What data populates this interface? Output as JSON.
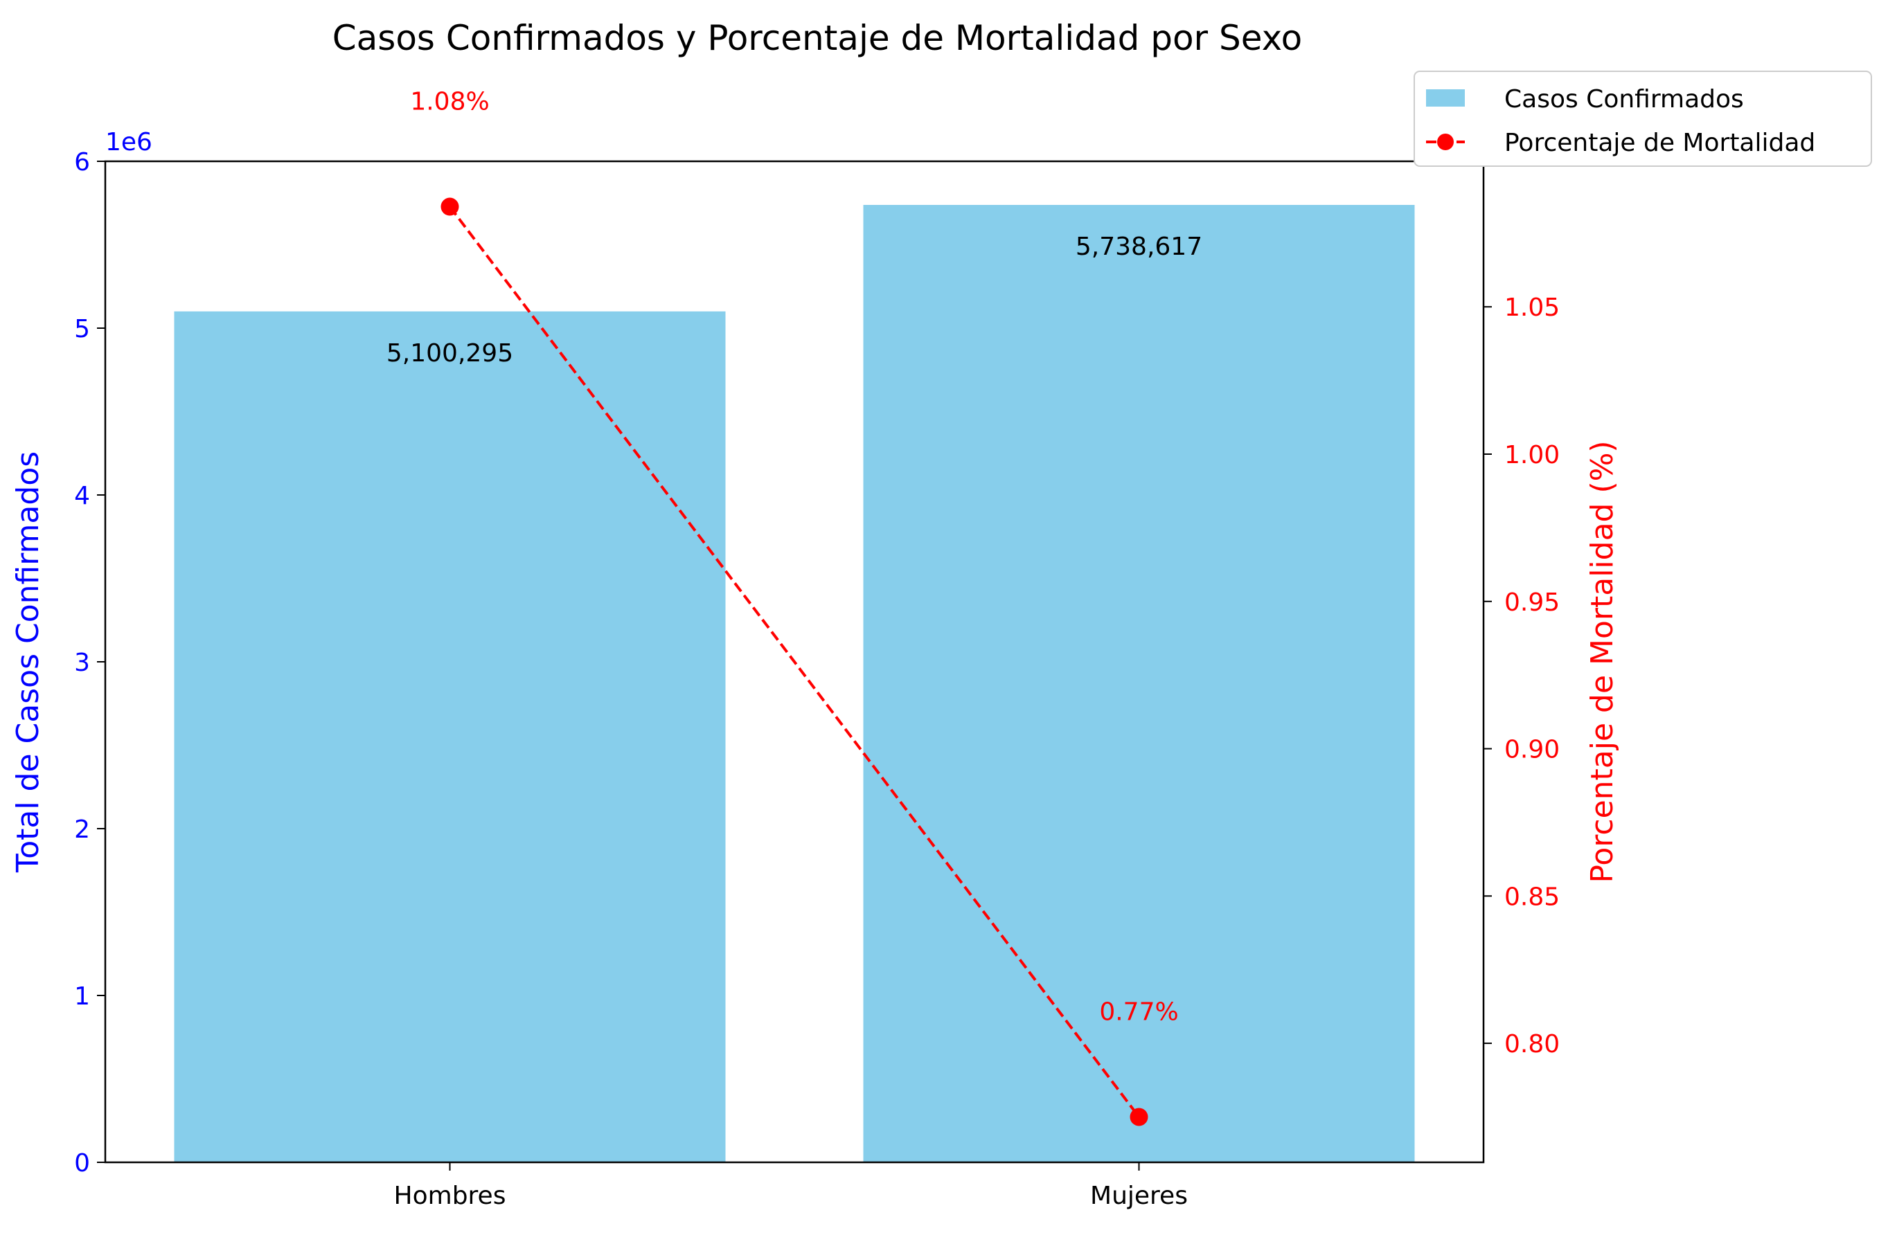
{
  "chart_data": {
    "type": "bar",
    "title": "Casos Confirmados y Porcentaje de Mortalidad por Sexo",
    "categories": [
      "Hombres",
      "Mujeres"
    ],
    "series": [
      {
        "name": "Casos Confirmados",
        "type": "bar",
        "axis": "left",
        "values": [
          5100295,
          5738617
        ],
        "data_labels": [
          "5,100,295",
          "5,738,617"
        ],
        "color": "#87CEEB"
      },
      {
        "name": "Porcentaje de Mortalidad",
        "type": "line",
        "axis": "right",
        "style": "dashed",
        "marker": "circle",
        "values": [
          1.084,
          0.775
        ],
        "data_labels": [
          "1.08%",
          "0.77%"
        ],
        "color": "#FF0000"
      }
    ],
    "y_left": {
      "label": "Total de Casos Confirmados",
      "ylim": [
        0,
        6000000
      ],
      "ticks": [
        0,
        1,
        2,
        3,
        4,
        5,
        6
      ],
      "offset_text": "1e6",
      "color": "#0000FF"
    },
    "y_right": {
      "label": "Porcentaje de Mortalidad (%)",
      "ylim": [
        0.7596,
        1.0994
      ],
      "ticks": [
        "0.80",
        "0.85",
        "0.90",
        "0.95",
        "1.00",
        "1.05"
      ],
      "color": "#FF0000"
    },
    "grid": false,
    "legend": {
      "placement": "top-right"
    }
  }
}
